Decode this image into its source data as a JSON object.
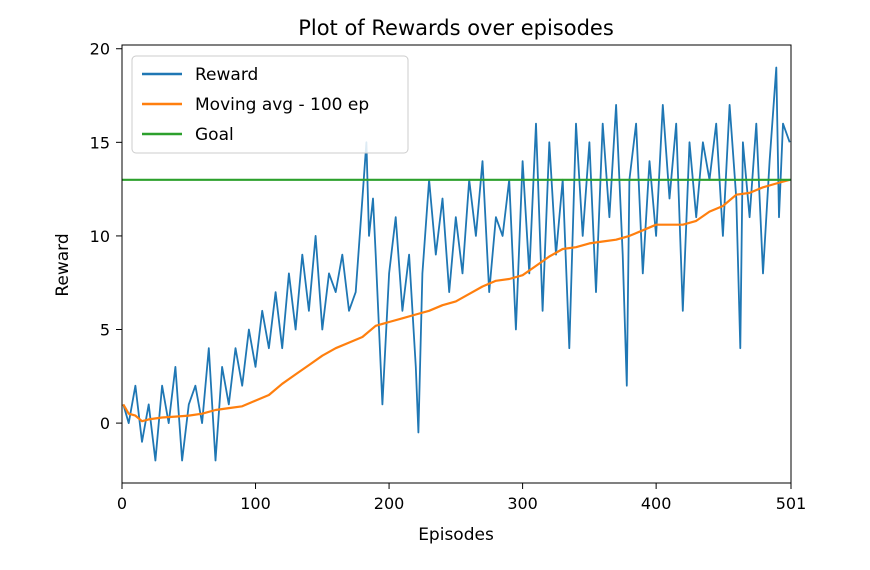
{
  "chart_data": {
    "type": "line",
    "title": "Plot of Rewards over episodes",
    "xlabel": "Episodes",
    "ylabel": "Reward",
    "xlim": [
      0,
      501
    ],
    "ylim": [
      -3.2,
      20.2
    ],
    "xticks": [
      0,
      100,
      200,
      300,
      400,
      501
    ],
    "yticks": [
      0,
      5,
      10,
      15,
      20
    ],
    "grid": false,
    "legend_position": "upper-left",
    "series": [
      {
        "name": "Reward",
        "color": "#1f77b4",
        "x": [
          1,
          5,
          10,
          15,
          20,
          25,
          30,
          35,
          40,
          45,
          50,
          55,
          60,
          65,
          70,
          75,
          80,
          85,
          90,
          95,
          100,
          105,
          110,
          115,
          120,
          125,
          130,
          135,
          140,
          145,
          150,
          155,
          160,
          165,
          170,
          175,
          180,
          183,
          185,
          188,
          190,
          195,
          200,
          205,
          210,
          215,
          220,
          222,
          225,
          230,
          235,
          240,
          245,
          250,
          255,
          260,
          265,
          270,
          275,
          280,
          285,
          290,
          295,
          300,
          305,
          310,
          315,
          320,
          325,
          330,
          335,
          340,
          345,
          350,
          355,
          360,
          365,
          370,
          375,
          378,
          380,
          385,
          390,
          395,
          400,
          405,
          410,
          415,
          420,
          425,
          430,
          435,
          440,
          445,
          450,
          455,
          460,
          463,
          465,
          470,
          475,
          480,
          485,
          490,
          492,
          495,
          500
        ],
        "values": [
          1,
          0,
          2,
          -1,
          1,
          -2,
          2,
          0,
          3,
          -2,
          1,
          2,
          0,
          4,
          -2,
          3,
          1,
          4,
          2,
          5,
          3,
          6,
          4,
          7,
          4,
          8,
          5,
          9,
          6,
          10,
          5,
          8,
          7,
          9,
          6,
          7,
          12,
          15,
          10,
          12,
          9,
          1,
          8,
          11,
          6,
          9,
          3,
          -0.5,
          8,
          13,
          9,
          12,
          7,
          11,
          8,
          13,
          10,
          14,
          7,
          11,
          10,
          13,
          5,
          14,
          8,
          16,
          6,
          15,
          9,
          13,
          4,
          16,
          10,
          15,
          7,
          16,
          11,
          17,
          9,
          2,
          13,
          16,
          8,
          14,
          10,
          17,
          12,
          16,
          6,
          15,
          11,
          15,
          13,
          16,
          10,
          17,
          12,
          4,
          15,
          11,
          16,
          8,
          14,
          19,
          11,
          16,
          15
        ]
      },
      {
        "name": "Moving avg - 100 ep",
        "color": "#ff7f0e",
        "x": [
          1,
          5,
          10,
          15,
          20,
          30,
          40,
          50,
          60,
          70,
          80,
          90,
          100,
          110,
          120,
          130,
          140,
          150,
          160,
          170,
          180,
          190,
          200,
          210,
          220,
          230,
          240,
          250,
          260,
          270,
          280,
          290,
          300,
          310,
          320,
          330,
          340,
          350,
          360,
          370,
          380,
          390,
          400,
          410,
          420,
          430,
          440,
          450,
          460,
          470,
          480,
          490,
          500
        ],
        "values": [
          1,
          0.5,
          0.4,
          0.1,
          0.2,
          0.3,
          0.35,
          0.4,
          0.5,
          0.7,
          0.8,
          0.9,
          1.2,
          1.5,
          2.1,
          2.6,
          3.1,
          3.6,
          4.0,
          4.3,
          4.6,
          5.2,
          5.4,
          5.6,
          5.8,
          6.0,
          6.3,
          6.5,
          6.9,
          7.3,
          7.6,
          7.7,
          7.9,
          8.4,
          8.9,
          9.3,
          9.4,
          9.6,
          9.7,
          9.8,
          10.0,
          10.3,
          10.6,
          10.6,
          10.6,
          10.8,
          11.3,
          11.6,
          12.2,
          12.3,
          12.6,
          12.8,
          13.0
        ]
      },
      {
        "name": "Goal",
        "color": "#2ca02c",
        "x": [
          0,
          501
        ],
        "values": [
          13,
          13
        ]
      }
    ]
  }
}
